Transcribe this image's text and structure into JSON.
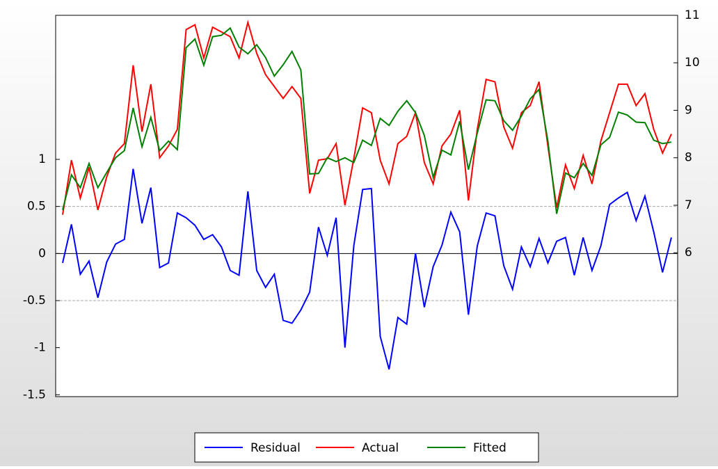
{
  "chart_data": {
    "type": "line",
    "ylim": [
      -1.52,
      2.53
    ],
    "yticks": [
      -1.5,
      -1.0,
      -0.5,
      0.0,
      0.5,
      1.0
    ],
    "y2lim": [
      2.97,
      11
    ],
    "y2ticks": [
      6,
      7,
      8,
      9,
      10,
      11
    ],
    "reference_lines": [
      -0.5,
      0.5
    ],
    "series": [
      {
        "name": "Residual",
        "color": "#0000ff",
        "values": [
          -0.1,
          0.31,
          -0.22,
          -0.08,
          -0.47,
          -0.09,
          0.1,
          0.15,
          0.9,
          0.32,
          0.7,
          -0.15,
          -0.1,
          0.43,
          0.38,
          0.3,
          0.15,
          0.2,
          0.07,
          -0.18,
          -0.23,
          0.66,
          -0.18,
          -0.36,
          -0.22,
          -0.71,
          -0.74,
          -0.6,
          -0.41,
          0.28,
          -0.02,
          0.38,
          -1.0,
          0.08,
          0.68,
          0.69,
          -0.88,
          -1.23,
          -0.68,
          -0.75,
          0.0,
          -0.57,
          -0.14,
          0.09,
          0.44,
          0.23,
          -0.65,
          0.08,
          0.43,
          0.4,
          -0.13,
          -0.38,
          0.07,
          -0.14,
          0.16,
          -0.1,
          0.13,
          0.17,
          -0.23,
          0.17,
          -0.18,
          0.08,
          0.52,
          0.59,
          0.65,
          0.35,
          0.61,
          0.23,
          -0.2,
          0.17
        ]
      },
      {
        "name": "Actual",
        "color": "#ff0000",
        "axis": "y2",
        "values": [
          6.8,
          7.95,
          7.15,
          7.8,
          6.9,
          7.6,
          8.1,
          8.3,
          9.95,
          8.55,
          9.55,
          8.0,
          8.25,
          8.6,
          10.7,
          10.8,
          10.1,
          10.75,
          10.65,
          10.55,
          10.1,
          10.85,
          10.2,
          9.75,
          9.5,
          9.25,
          9.5,
          9.25,
          7.25,
          7.95,
          7.98,
          8.3,
          7.0,
          7.98,
          9.05,
          8.95,
          7.95,
          7.45,
          8.3,
          8.45,
          8.95,
          7.9,
          7.45,
          8.25,
          8.5,
          9.0,
          7.1,
          8.6,
          9.65,
          9.6,
          8.65,
          8.2,
          8.95,
          9.1,
          9.6,
          8.25,
          6.95,
          7.85,
          7.35,
          8.05,
          7.45,
          8.35,
          8.95,
          9.55,
          9.55,
          9.1,
          9.35,
          8.6,
          8.1,
          8.5
        ]
      },
      {
        "name": "Fitted",
        "color": "#008000",
        "axis": "y2",
        "values": [
          6.9,
          7.64,
          7.37,
          7.88,
          7.37,
          7.69,
          8.0,
          8.15,
          9.05,
          8.23,
          8.85,
          8.15,
          8.35,
          8.17,
          10.32,
          10.5,
          9.95,
          10.55,
          10.58,
          10.73,
          10.33,
          10.19,
          10.38,
          10.11,
          9.72,
          9.96,
          10.24,
          9.85,
          7.66,
          7.67,
          8.0,
          7.92,
          8.0,
          7.9,
          8.37,
          8.26,
          8.83,
          8.68,
          8.98,
          9.2,
          8.95,
          8.47,
          7.59,
          8.16,
          8.06,
          8.77,
          7.75,
          8.52,
          9.22,
          9.2,
          8.78,
          8.58,
          8.88,
          9.24,
          9.44,
          8.35,
          6.82,
          7.68,
          7.58,
          7.88,
          7.63,
          8.27,
          8.43,
          8.96,
          8.9,
          8.75,
          8.74,
          8.37,
          8.3,
          8.33
        ]
      }
    ]
  }
}
